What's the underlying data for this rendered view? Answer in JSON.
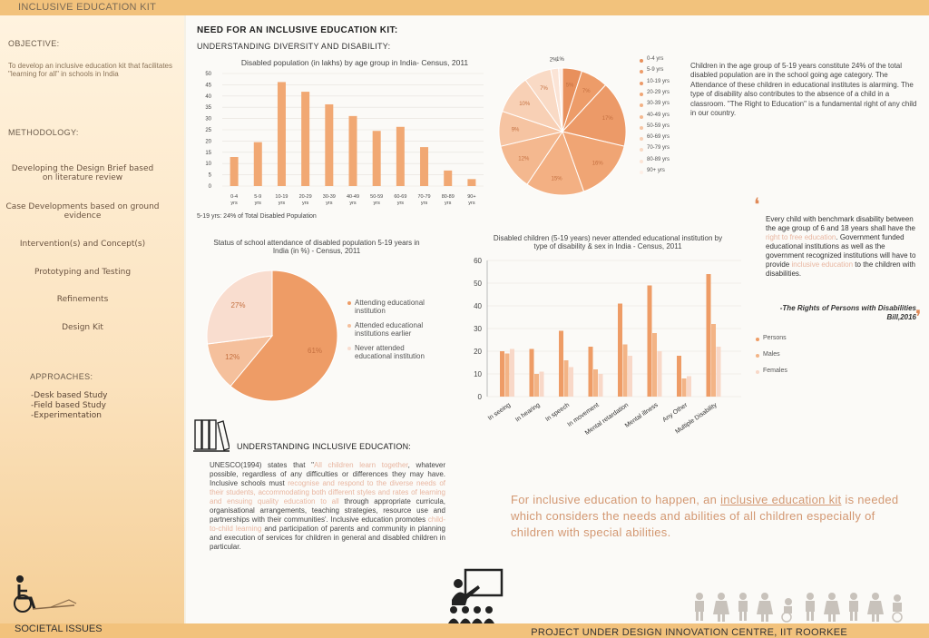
{
  "header": {
    "title": "INCLUSIVE EDUCATION KIT"
  },
  "sidebar": {
    "objective_title": "OBJECTIVE:",
    "objective_text": "To develop an inclusive education kit that facilitates \"learning for all\" in schools in India",
    "methodology_title": "METHODOLOGY:",
    "methodology_items": [
      "Developing the Design Brief based on literature review",
      "Case Developments based on ground evidence",
      "Intervention(s) and Concept(s)",
      "Prototyping and Testing",
      "Refinements",
      "Design Kit"
    ],
    "approaches_title": "APPROACHES:",
    "approaches_items": [
      "-Desk based Study",
      "-Field based Study",
      "-Experimentation"
    ],
    "societal_label": "SOCIETAL ISSUES"
  },
  "main": {
    "title": "NEED FOR AN INCLUSIVE EDUCATION KIT:",
    "subtitle": "UNDERSTANDING DIVERSITY AND DISABILITY:",
    "note_519": "5-19 yrs: 24% of Total Disabled Population",
    "right_text": "Children in the age group of 5-19 years constitute 24% of the total disabled population are in the school going age category. The Attendance of these children in educational institutes is alarming. The type of disability also contributes to the absence of a child in a classroom. \"The Right to Education\" is a fundamental right of any child in our country.",
    "quote_a": "Every child with benchmark disability between the age group of 6 and 18 years shall have the ",
    "quote_hl1": "right to free education",
    "quote_b": ". Government funded educational institutions as well as the government recognized institutions will have to provide ",
    "quote_hl2": "inclusive education",
    "quote_c": " to the children with disabilities.",
    "quote_source": "-The Rights of Persons with Disabilities Bill,2016",
    "inclusive_title": "UNDERSTANDING INCLUSIVE EDUCATION:",
    "unesco_1": "UNESCO(1994) states that \"",
    "unesco_hl1": "All children learn together",
    "unesco_2": ", whatever possible, regardless of any difficulties or differences they may have. Inclusive schools must ",
    "unesco_hl2": "recognise and respond to the diverse needs of their students, accommodating both different styles and rates of learning and ensuing quality education to all",
    "unesco_3": " through appropriate curricula, organisational arrangements, teaching strategies, resource use and partnerships with their communities'. Inclusive education promotes ",
    "unesco_hl3": "child-to-child learning",
    "unesco_4": " and participation of parents and community in planning and execution of services for children in general and disabled children in particular.",
    "bottom_statement_a": "For inclusive education to happen, an ",
    "bottom_statement_link": "inclusive education kit",
    "bottom_statement_b": " is needed which considers the needs and abilities of all children especially of children with special abilities.",
    "footer_right": "PROJECT UNDER DESIGN INNOVATION CENTRE, IIT ROORKEE"
  },
  "colors": {
    "accent": "#f1a873",
    "dark_orange": "#e88f5a",
    "peach": "#f6c8a6",
    "light": "#f8ddd0",
    "sidebar": "#f5cf97"
  },
  "chart_data": [
    {
      "type": "bar",
      "title": "Disabled population (in lakhs) by age group in India- Census, 2011",
      "categories": [
        "0-4 yrs",
        "5-9 yrs",
        "10-19 yrs",
        "20-29 yrs",
        "30-39 yrs",
        "40-49 yrs",
        "50-59 yrs",
        "60-69 yrs",
        "70-79 yrs",
        "80-89 yrs",
        "90+ yrs"
      ],
      "values": [
        12.9,
        19.5,
        46.2,
        41.9,
        36.3,
        31.1,
        24.5,
        26.3,
        17.3,
        6.9,
        3.1
      ],
      "ylim": [
        0,
        50
      ],
      "yticks": [
        "0",
        "5",
        "10",
        "15",
        "20",
        "25",
        "30",
        "35",
        "40",
        "45",
        "50"
      ],
      "grid": true
    },
    {
      "type": "pie",
      "labels": [
        "0-4 yrs",
        "5-9 yrs",
        "10-19 yrs",
        "20-29 yrs",
        "30-39 yrs",
        "40-49 yrs",
        "50-59 yrs",
        "60-69 yrs",
        "70-79 yrs",
        "80-89 yrs",
        "90+ yrs"
      ],
      "values": [
        5,
        7,
        17,
        16,
        15,
        12,
        9,
        10,
        7,
        2,
        1
      ],
      "slice_labels": [
        "5%",
        "7%",
        "17%",
        "16%",
        "15%",
        "12%",
        "9%",
        "10%",
        "7%",
        "2%",
        "1%"
      ],
      "colors": [
        "#e8905c",
        "#ed9c69",
        "#ec9a68",
        "#f0a574",
        "#f3b083",
        "#f4b88f",
        "#f6c4a2",
        "#f8d0b5",
        "#f9dac5",
        "#fbe4d6",
        "#fdeee6"
      ],
      "legend": "right"
    },
    {
      "type": "pie",
      "title": "Status of school attendance of disabled population 5-19 years in India (in %) - Census, 2011",
      "labels": [
        "Attending educational institution",
        "Attended educational institutions earlier",
        "Never attended educational institution"
      ],
      "values": [
        61,
        12,
        27
      ],
      "slice_labels": [
        "61%",
        "12%",
        "27%"
      ],
      "colors": [
        "#ee9c66",
        "#f5c09c",
        "#f9ddcf"
      ],
      "legend": "right"
    },
    {
      "type": "bar",
      "title": "Disabled children (5-19 years) never attended educational institution by type of disability & sex in India - Census, 2011",
      "categories": [
        "In seeing",
        "In hearing",
        "In speech",
        "In movement",
        "Mental retardation",
        "Mental illness",
        "Any Other",
        "Multiple Disability"
      ],
      "series": [
        {
          "name": "Persons",
          "values": [
            20,
            21,
            29,
            22,
            41,
            49,
            18,
            54
          ]
        },
        {
          "name": "Males",
          "values": [
            19,
            10,
            16,
            12,
            23,
            28,
            8,
            32
          ]
        },
        {
          "name": "Females",
          "values": [
            21,
            11,
            13,
            10,
            18,
            20,
            9,
            22
          ]
        }
      ],
      "ylim": [
        0,
        60
      ],
      "yticks": [
        "0",
        "10",
        "20",
        "30",
        "40",
        "50",
        "60"
      ],
      "grid": true,
      "legend": "right"
    }
  ]
}
